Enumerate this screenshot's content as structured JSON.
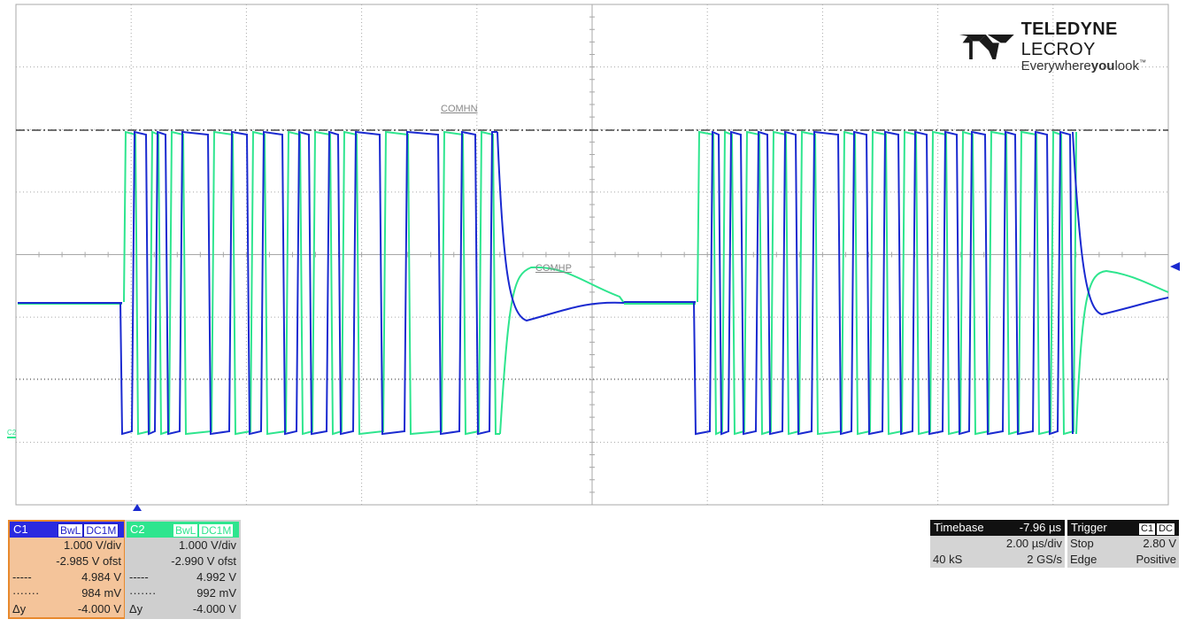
{
  "brand": {
    "name_bold": "TELEDYNE",
    "name_regular": "LECROY",
    "tagline_a": "Everywhere",
    "tagline_b": "you",
    "tagline_c": "look",
    "tm": "™"
  },
  "markers": {
    "comhn": "COMHN",
    "comhp": "COMHP",
    "c2_ground": "C2"
  },
  "colors": {
    "c1": "#1a2ad0",
    "c2": "#2ee58e",
    "grid": "#a8a8a8"
  },
  "channel1": {
    "name": "C1",
    "bw": "BwL",
    "coupling": "DC1M",
    "vdiv": "1.000 V/div",
    "offset": "-2.985 V ofst",
    "cursor1_sym": "-----",
    "cursor1_val": "4.984 V",
    "cursor2_sym": "·······",
    "cursor2_val": "984 mV",
    "delta_sym": "Δy",
    "delta_val": "-4.000 V"
  },
  "channel2": {
    "name": "C2",
    "bw": "BwL",
    "coupling": "DC1M",
    "vdiv": "1.000 V/div",
    "offset": "-2.990 V ofst",
    "cursor1_sym": "-----",
    "cursor1_val": "4.992 V",
    "cursor2_sym": "·······",
    "cursor2_val": "992 mV",
    "delta_sym": "Δy",
    "delta_val": "-4.000 V"
  },
  "timebase": {
    "label": "Timebase",
    "delay": "-7.96 µs",
    "tdiv": "2.00 µs/div",
    "samples": "40 kS",
    "rate": "2 GS/s"
  },
  "trigger": {
    "label": "Trigger",
    "source": "C1",
    "coupling": "DC",
    "mode": "Stop",
    "level": "2.80 V",
    "type": "Edge",
    "slope": "Positive"
  }
}
